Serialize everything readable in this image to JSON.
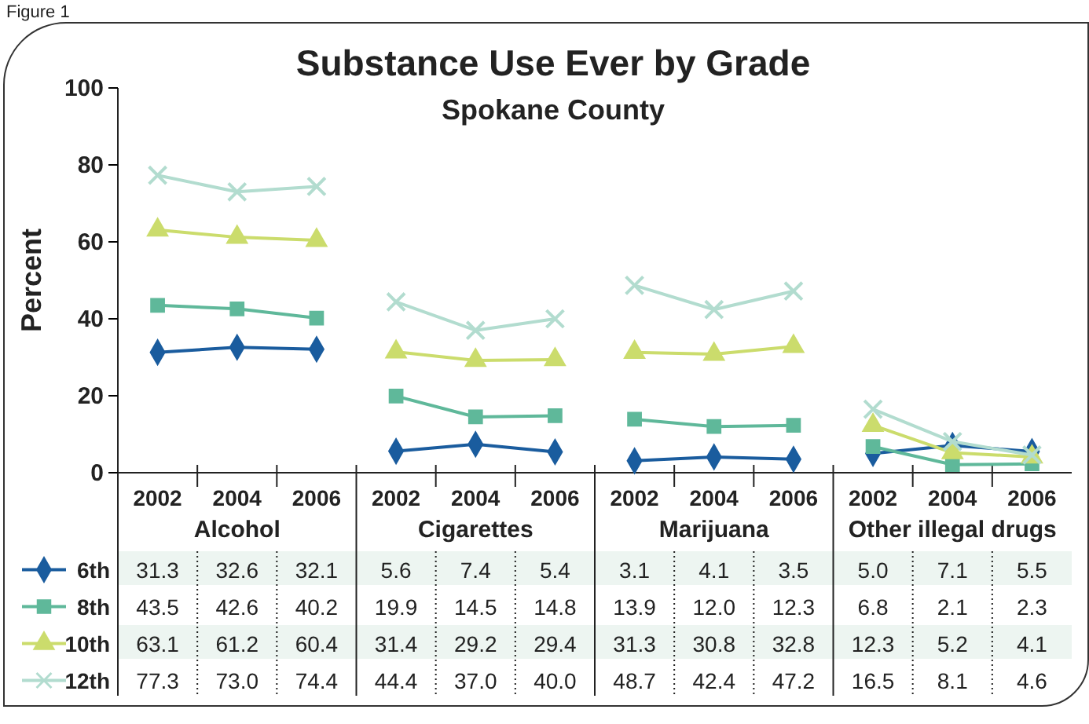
{
  "chart_data": {
    "type": "line",
    "title": "Substance Use Ever by Grade",
    "subtitle": "Spokane County",
    "ylabel": "Percent",
    "annotations": [
      "Figure 1",
      "Alcohol",
      "Cigarettes",
      "Marijuana",
      "Other illegal drugs"
    ],
    "categories": [
      "2002",
      "2004",
      "2006",
      "2002",
      "2004",
      "2006",
      "2002",
      "2004",
      "2006",
      "2002",
      "2004",
      "2006"
    ],
    "ylim": [
      0,
      100
    ],
    "yticks": [
      0,
      20,
      40,
      60,
      80,
      100
    ],
    "grid": false,
    "legend": "bottom left",
    "series": [
      {
        "name": "6th",
        "color": "#1a5c9e",
        "marker": "diamond",
        "values": [
          31.3,
          32.6,
          32.1,
          5.6,
          7.4,
          5.4,
          3.1,
          4.1,
          3.5,
          5.0,
          7.1,
          5.5
        ],
        "value_labels": [
          "31.3",
          "32.6",
          "32.1",
          "5.6",
          "7.4",
          "5.4",
          "3.1",
          "4.1",
          "3.5",
          "5.0",
          "7.1",
          "5.5"
        ]
      },
      {
        "name": "8th",
        "color": "#5fb89a",
        "marker": "square",
        "values": [
          43.5,
          42.6,
          40.2,
          19.9,
          14.5,
          14.8,
          13.9,
          12.0,
          12.3,
          6.8,
          2.1,
          2.3
        ],
        "value_labels": [
          "43.5",
          "42.6",
          "40.2",
          "19.9",
          "14.5",
          "14.8",
          "13.9",
          "12.0",
          "12.3",
          "6.8",
          "2.1",
          "2.3"
        ]
      },
      {
        "name": "10th",
        "color": "#cbdc6c",
        "marker": "triangle",
        "values": [
          63.1,
          61.2,
          60.4,
          31.4,
          29.2,
          29.4,
          31.3,
          30.8,
          32.8,
          12.3,
          5.2,
          4.1
        ],
        "value_labels": [
          "63.1",
          "61.2",
          "60.4",
          "31.4",
          "29.2",
          "29.4",
          "31.3",
          "30.8",
          "32.8",
          "12.3",
          "5.2",
          "4.1"
        ]
      },
      {
        "name": "12th",
        "color": "#b2dccf",
        "marker": "cross",
        "values": [
          77.3,
          73.0,
          74.4,
          44.4,
          37.0,
          40.0,
          48.7,
          42.4,
          47.2,
          16.5,
          8.1,
          4.6
        ],
        "value_labels": [
          "77.3",
          "73.0",
          "74.4",
          "44.4",
          "37.0",
          "40.0",
          "48.7",
          "42.4",
          "47.2",
          "16.5",
          "8.1",
          "4.6"
        ]
      }
    ]
  }
}
